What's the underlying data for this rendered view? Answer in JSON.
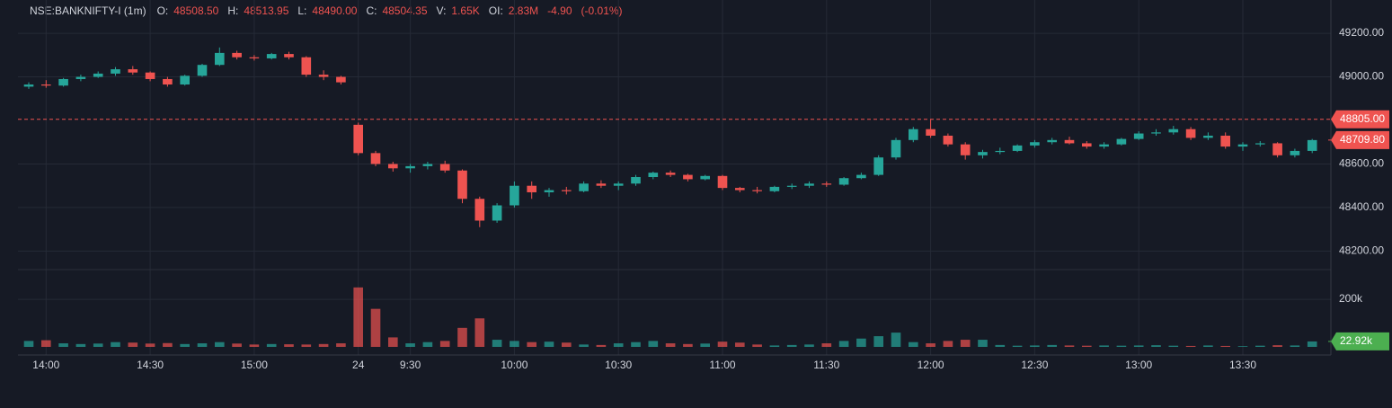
{
  "header": {
    "symbol": "NSE:BANKNIFTY-I (1m)",
    "fields": [
      {
        "label": "O:",
        "value": "48508.50"
      },
      {
        "label": "H:",
        "value": "48513.95"
      },
      {
        "label": "L:",
        "value": "48490.00"
      },
      {
        "label": "C:",
        "value": "48504.35"
      },
      {
        "label": "V:",
        "value": "1.65K"
      },
      {
        "label": "OI:",
        "value": "2.83M"
      }
    ],
    "change": "-4.90",
    "change_pct": "(-0.01%)"
  },
  "chart_data": {
    "type": "candlestick",
    "categories": [
      null,
      "14:00",
      null,
      null,
      null,
      null,
      null,
      "14:30",
      null,
      null,
      null,
      null,
      null,
      "15:00",
      null,
      null,
      null,
      null,
      null,
      "24",
      null,
      null,
      "9:30",
      null,
      null,
      null,
      null,
      null,
      "10:00",
      null,
      null,
      null,
      null,
      null,
      "10:30",
      null,
      null,
      null,
      null,
      null,
      "11:00",
      null,
      null,
      null,
      null,
      null,
      "11:30",
      null,
      null,
      null,
      null,
      null,
      "12:00",
      null,
      null,
      null,
      null,
      null,
      "12:30",
      null,
      null,
      null,
      null,
      null,
      "13:00",
      null,
      null,
      null,
      null,
      null,
      "13:30",
      null,
      null,
      null,
      null
    ],
    "open": [
      48955,
      48965,
      48960,
      48990,
      49000,
      49015,
      49035,
      49020,
      48990,
      48965,
      49005,
      49055,
      49110,
      49090,
      49085,
      49105,
      49090,
      49010,
      49000,
      48780,
      48650,
      48600,
      48580,
      48590,
      48600,
      48570,
      48440,
      48340,
      48410,
      48500,
      48470,
      48480,
      48475,
      48510,
      48500,
      48510,
      48540,
      48560,
      48550,
      48530,
      48545,
      48490,
      48480,
      48475,
      48495,
      48500,
      48510,
      48505,
      48535,
      48550,
      48630,
      48710,
      48760,
      48730,
      48690,
      48640,
      48655,
      48660,
      48685,
      48700,
      48710,
      48695,
      48680,
      48690,
      48715,
      48740,
      48745,
      48760,
      48720,
      48730,
      48680,
      48690,
      48695,
      48640,
      48660
    ],
    "high": [
      48975,
      48985,
      48995,
      49010,
      49025,
      49045,
      49050,
      49025,
      49000,
      49010,
      49060,
      49135,
      49120,
      49100,
      49110,
      49115,
      49095,
      49030,
      49005,
      48790,
      48660,
      48610,
      48600,
      48610,
      48615,
      48575,
      48450,
      48420,
      48520,
      48520,
      48490,
      48495,
      48520,
      48525,
      48520,
      48550,
      48565,
      48570,
      48555,
      48550,
      48550,
      48495,
      48495,
      48500,
      48510,
      48520,
      48520,
      48540,
      48560,
      48640,
      48720,
      48770,
      48805,
      48740,
      48700,
      48665,
      48675,
      48690,
      48710,
      48720,
      48725,
      48705,
      48700,
      48720,
      48750,
      48760,
      48775,
      48770,
      48745,
      48745,
      48700,
      48705,
      48700,
      48670,
      48715
    ],
    "low": [
      48945,
      48950,
      48955,
      48980,
      48995,
      49005,
      49010,
      48980,
      48955,
      48960,
      49000,
      49050,
      49080,
      49075,
      49080,
      49080,
      49000,
      48985,
      48965,
      48640,
      48590,
      48565,
      48560,
      48575,
      48560,
      48420,
      48310,
      48330,
      48400,
      48440,
      48450,
      48460,
      48470,
      48490,
      48480,
      48500,
      48530,
      48540,
      48520,
      48525,
      48480,
      48470,
      48465,
      48470,
      48485,
      48490,
      48495,
      48500,
      48530,
      48545,
      48620,
      48700,
      48720,
      48680,
      48620,
      48625,
      48645,
      48655,
      48675,
      48690,
      48690,
      48670,
      48670,
      48685,
      48710,
      48730,
      48735,
      48710,
      48710,
      48670,
      48660,
      48680,
      48630,
      48630,
      48650
    ],
    "close": [
      48965,
      48960,
      48990,
      49000,
      49015,
      49035,
      49020,
      48990,
      48965,
      49005,
      49055,
      49110,
      49090,
      49085,
      49105,
      49090,
      49010,
      49000,
      48975,
      48650,
      48600,
      48580,
      48590,
      48600,
      48570,
      48440,
      48340,
      48410,
      48500,
      48470,
      48480,
      48475,
      48510,
      48500,
      48510,
      48540,
      48560,
      48550,
      48530,
      48545,
      48490,
      48480,
      48475,
      48495,
      48500,
      48510,
      48505,
      48535,
      48550,
      48630,
      48710,
      48760,
      48730,
      48690,
      48640,
      48655,
      48660,
      48685,
      48700,
      48710,
      48695,
      48680,
      48690,
      48715,
      48740,
      48745,
      48760,
      48720,
      48730,
      48680,
      48690,
      48695,
      48640,
      48660,
      48709.8
    ],
    "volume": [
      25000,
      28000,
      15000,
      12000,
      14000,
      20000,
      18000,
      14000,
      16000,
      12000,
      15000,
      20000,
      14000,
      10000,
      12000,
      11000,
      10000,
      12000,
      15000,
      250000,
      160000,
      40000,
      15000,
      20000,
      25000,
      80000,
      120000,
      30000,
      25000,
      20000,
      22000,
      18000,
      10000,
      8000,
      15000,
      20000,
      25000,
      15000,
      12000,
      14000,
      22000,
      18000,
      10000,
      6000,
      8000,
      10000,
      15000,
      25000,
      35000,
      45000,
      60000,
      20000,
      15000,
      25000,
      30000,
      30000,
      8000,
      5000,
      6000,
      8000,
      6000,
      5000,
      6000,
      5000,
      6000,
      7000,
      5000,
      4000,
      6000,
      4000,
      3000,
      5000,
      7000,
      6000,
      22920
    ],
    "up_color": "#26a69a",
    "down_color": "#ef5350",
    "ylim": [
      48115,
      49353
    ],
    "yticks": [
      {
        "value": 48200,
        "label": "48200.00"
      },
      {
        "value": 48400,
        "label": "48400.00"
      },
      {
        "value": 48600,
        "label": "48600.00"
      },
      {
        "value": 49000,
        "label": "49000.00"
      },
      {
        "value": 49200,
        "label": "49200.00"
      }
    ],
    "volume_lim": [
      0,
      325000
    ],
    "volume_ticks": [
      {
        "value": 200000,
        "label": "200k"
      }
    ],
    "price_line": {
      "value": 48805,
      "label": "48805.00"
    },
    "last_price": {
      "value": 48709.8,
      "label": "48709.80"
    },
    "last_volume": {
      "value": 22920,
      "label": "22.92k"
    },
    "grid": true
  }
}
